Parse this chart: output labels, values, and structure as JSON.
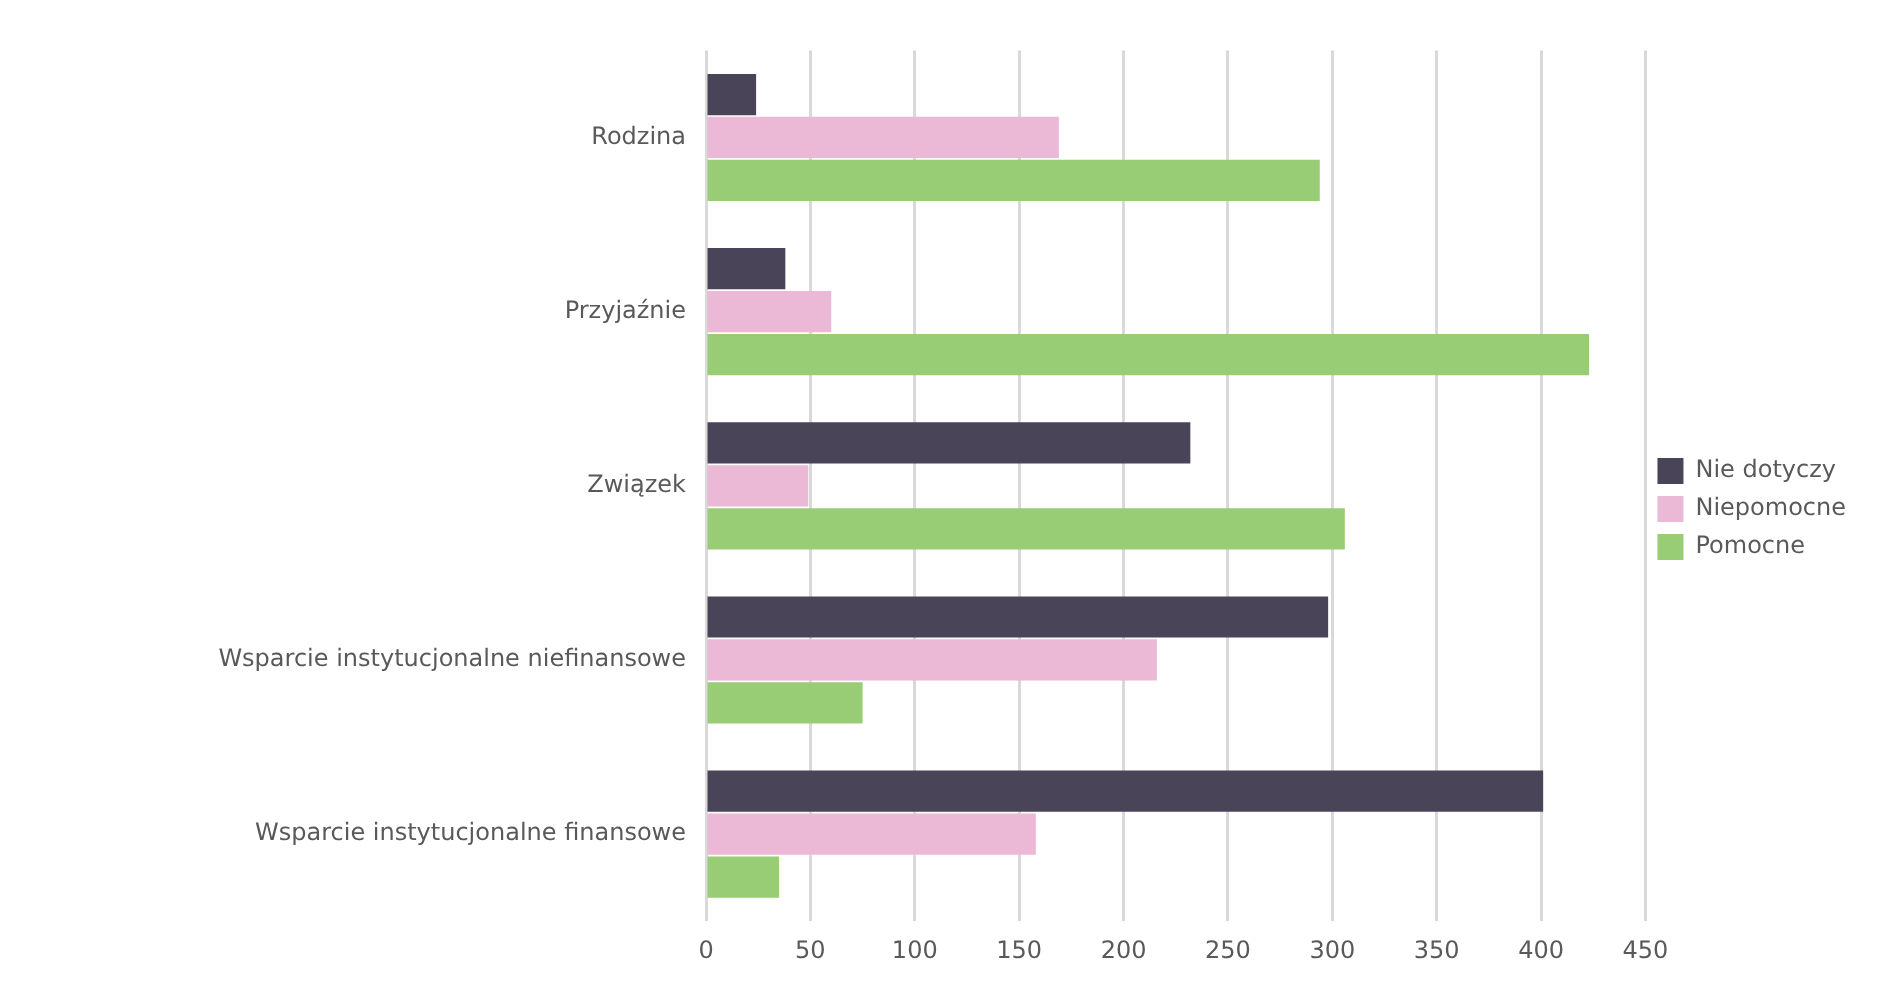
{
  "chart_data": {
    "type": "bar",
    "orientation": "horizontal",
    "categories": [
      "Rodzina",
      "Przyjaźnie",
      "Związek",
      "Wsparcie instytucjonalne niefinansowe",
      "Wsparcie instytucjonalne finansowe"
    ],
    "series": [
      {
        "name": "Nie dotyczy",
        "color": "#4a4458",
        "values": [
          24,
          38,
          232,
          298,
          401
        ]
      },
      {
        "name": "Niepomocne",
        "color": "#ebb8d6",
        "values": [
          169,
          60,
          49,
          216,
          158
        ]
      },
      {
        "name": "Pomocne",
        "color": "#98cd76",
        "values": [
          294,
          423,
          306,
          75,
          35
        ]
      }
    ],
    "xlim": [
      0,
      450
    ],
    "xticks": [
      0,
      50,
      100,
      150,
      200,
      250,
      300,
      350,
      400,
      450
    ],
    "grid": "x",
    "legend": "right"
  }
}
